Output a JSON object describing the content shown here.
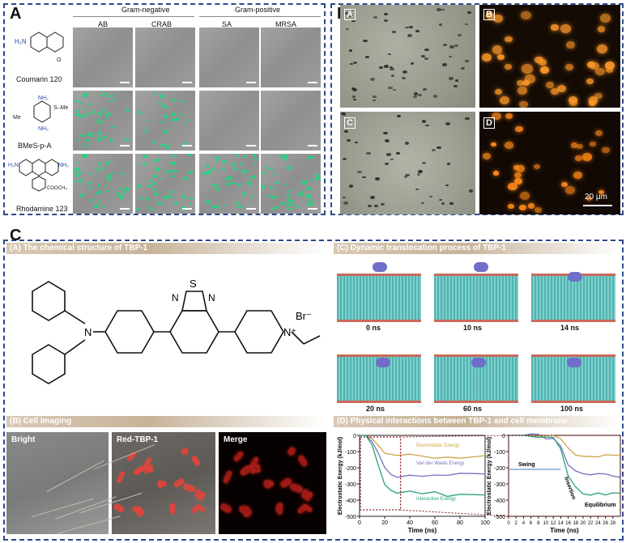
{
  "panelA": {
    "letter": "A",
    "group_gram_negative": "Gram-negative",
    "group_gram_positive": "Gram-positive",
    "columns": [
      "AB",
      "CRAB",
      "SA",
      "MRSA"
    ],
    "compounds": [
      "Coumarin 120",
      "BMeS-p-A",
      "Rhodamine 123"
    ],
    "mol_labels": {
      "nh2": "NH₂",
      "h2n": "H₂N",
      "me": "Me",
      "sme": "S–Me",
      "cooch3": "COOCH₃",
      "o": "O",
      "s": "S"
    }
  },
  "panelB": {
    "letter": "B",
    "sub_labels": [
      "A",
      "B",
      "C",
      "D"
    ],
    "scale_bar": "20 μm"
  },
  "panelC": {
    "letter": "C",
    "header_a": "(A) The chemical structure of TBP-1",
    "header_b": "(B) Cell imaging",
    "header_c": "(C) Dynamic translocation process of TBP-1",
    "header_d": "(D) Physical interactions between TBP-1 and cell membrane",
    "struct_labels": {
      "n": "N",
      "s": "S",
      "nplus": "N⁺",
      "br": "Br⁻"
    },
    "imaging_labels": [
      "Bright",
      "Red-TBP-1",
      "Merge"
    ],
    "md_times": [
      "0 ns",
      "10 ns",
      "14 ns",
      "20 ns",
      "60 ns",
      "100 ns"
    ]
  },
  "chart_data": [
    {
      "type": "line",
      "xlabel": "Time (ns)",
      "ylabel": "Electrostatic Energy (kJ/mol)",
      "xlim": [
        0,
        100
      ],
      "ylim": [
        -500,
        0
      ],
      "x_ticks": [
        "0",
        "20",
        "40",
        "60",
        "80",
        "100"
      ],
      "y_ticks": [
        "0",
        "-100",
        "-200",
        "-300",
        "-400",
        "-500"
      ],
      "x": [
        0,
        5,
        10,
        15,
        20,
        25,
        30,
        40,
        50,
        60,
        70,
        80,
        90,
        100
      ],
      "series": [
        {
          "name": "Electrostatic Energy",
          "color": "#c9a648",
          "values": [
            0,
            0,
            -20,
            -60,
            -110,
            -120,
            -130,
            -125,
            -140,
            -130,
            -125,
            -135,
            -130,
            -125
          ]
        },
        {
          "name": "Van der Waals Energy",
          "color": "#7a6fc0",
          "values": [
            0,
            0,
            -40,
            -120,
            -210,
            -230,
            -250,
            -240,
            -250,
            -245,
            -250,
            -240,
            -245,
            -250
          ]
        },
        {
          "name": "Interaction Energy",
          "color": "#29a37a",
          "values": [
            0,
            0,
            -60,
            -180,
            -300,
            -340,
            -360,
            -350,
            -370,
            -360,
            -365,
            -355,
            -360,
            -365
          ]
        }
      ]
    },
    {
      "type": "line",
      "xlabel": "Time (ns)",
      "ylabel": "Electrostatic Energy (kJ/mol)",
      "xlim": [
        0,
        30
      ],
      "ylim": [
        -500,
        0
      ],
      "x_ticks": [
        "0",
        "2",
        "4",
        "6",
        "8",
        "10",
        "12",
        "14",
        "16",
        "18",
        "20",
        "22",
        "24",
        "26",
        "28"
      ],
      "y_ticks": [
        "0",
        "-100",
        "-200",
        "-300",
        "-400",
        "-500"
      ],
      "annotations": [
        "Swing",
        "Insertion",
        "Equilibrium"
      ],
      "x": [
        0,
        2,
        4,
        6,
        8,
        10,
        12,
        14,
        16,
        18,
        20,
        22,
        24,
        26,
        28,
        30
      ],
      "series": [
        {
          "name": "Electrostatic Energy",
          "color": "#c9a648",
          "values": [
            0,
            0,
            0,
            0,
            -5,
            -5,
            -5,
            -30,
            -90,
            -110,
            -120,
            -125,
            -130,
            -120,
            -125,
            -130
          ]
        },
        {
          "name": "Van der Waals Energy",
          "color": "#7a6fc0",
          "values": [
            0,
            0,
            0,
            0,
            -5,
            -10,
            -10,
            -60,
            -180,
            -220,
            -240,
            -250,
            -245,
            -250,
            -240,
            -250
          ]
        },
        {
          "name": "Interaction Energy",
          "color": "#29a37a",
          "values": [
            0,
            0,
            0,
            0,
            -10,
            -10,
            -15,
            -90,
            -260,
            -330,
            -350,
            -360,
            -350,
            -365,
            -355,
            -360
          ]
        }
      ]
    }
  ]
}
